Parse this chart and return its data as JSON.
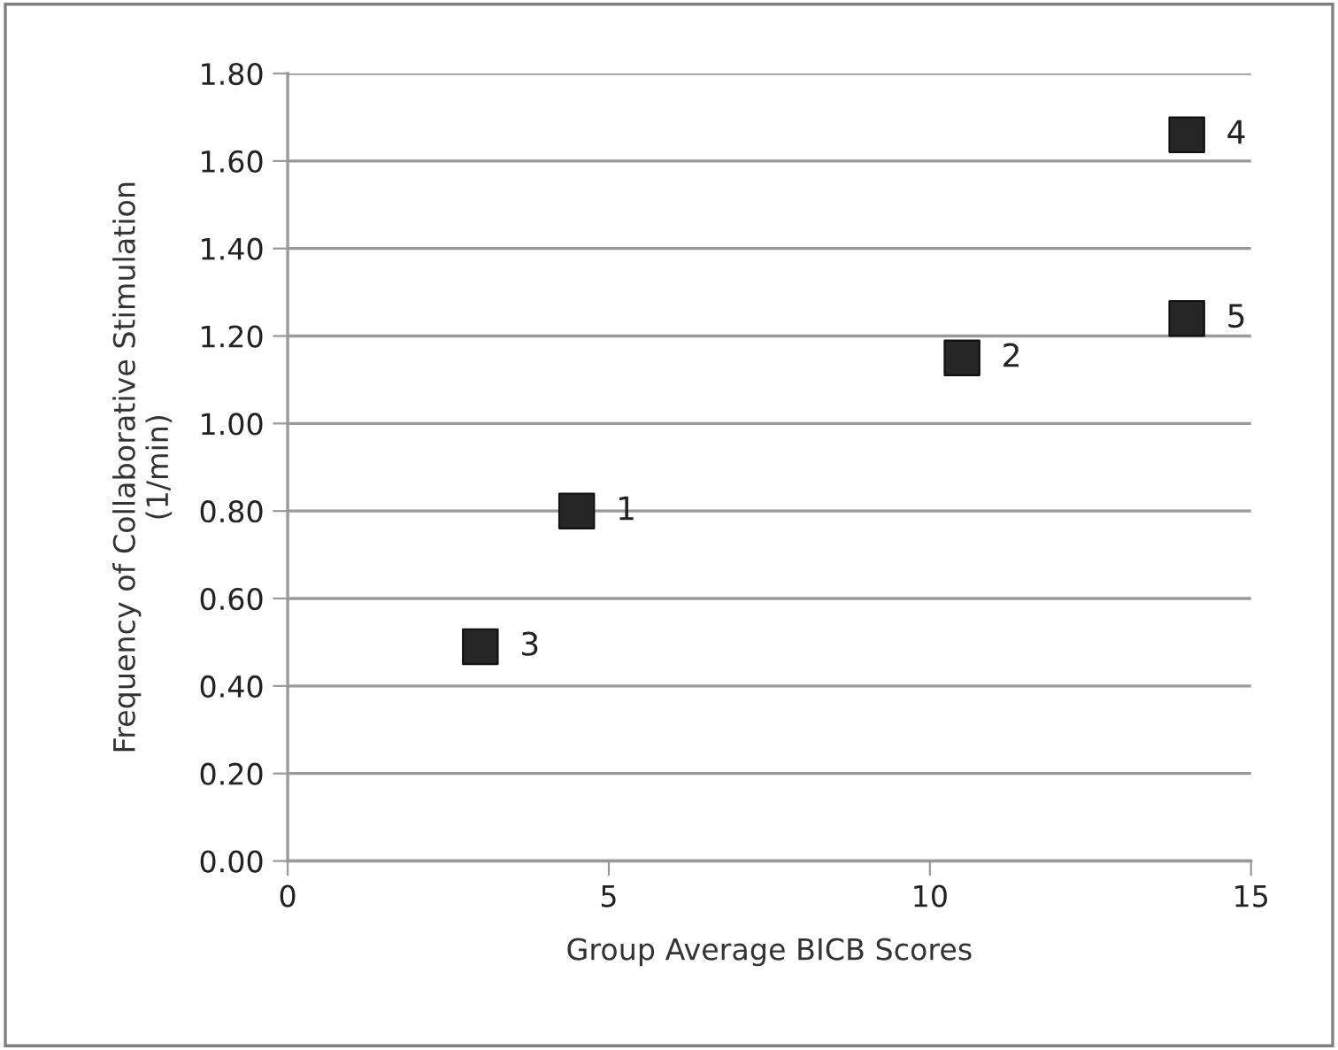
{
  "chart_data": {
    "type": "scatter",
    "xlabel": "Group Average BICB Scores",
    "ylabel": "Frequency of Collaborative Stimulation\n(1/min)",
    "x": [
      4.5,
      10.5,
      3.0,
      14.0,
      14.0
    ],
    "series": [
      {
        "color": "#262626",
        "values": [
          0.8,
          1.15,
          0.49,
          1.66,
          1.24
        ]
      }
    ],
    "marker": "square",
    "annotations": [
      {
        "text": "1",
        "x": 4.5,
        "y": 0.8
      },
      {
        "text": "2",
        "x": 10.5,
        "y": 1.15
      },
      {
        "text": "3",
        "x": 3.0,
        "y": 0.49
      },
      {
        "text": "4",
        "x": 14.0,
        "y": 1.66
      },
      {
        "text": "5",
        "x": 14.0,
        "y": 1.24
      }
    ],
    "xlim": [
      0,
      15
    ],
    "xticks": [
      0,
      5,
      10,
      15
    ],
    "ylim": [
      0,
      1.8
    ],
    "yticks": [
      {
        "value": 0,
        "label": "0.00"
      },
      {
        "value": 0.2,
        "label": "0.20"
      },
      {
        "value": 0.4,
        "label": "0.40"
      },
      {
        "value": 0.6,
        "label": "0.60"
      },
      {
        "value": 0.8,
        "label": "0.80"
      },
      {
        "value": 1.0,
        "label": "1.00"
      },
      {
        "value": 1.2,
        "label": "1.20"
      },
      {
        "value": 1.4,
        "label": "1.40"
      },
      {
        "value": 1.6,
        "label": "1.60"
      },
      {
        "value": 1.8,
        "label": "1.80"
      }
    ],
    "grid": "y"
  }
}
